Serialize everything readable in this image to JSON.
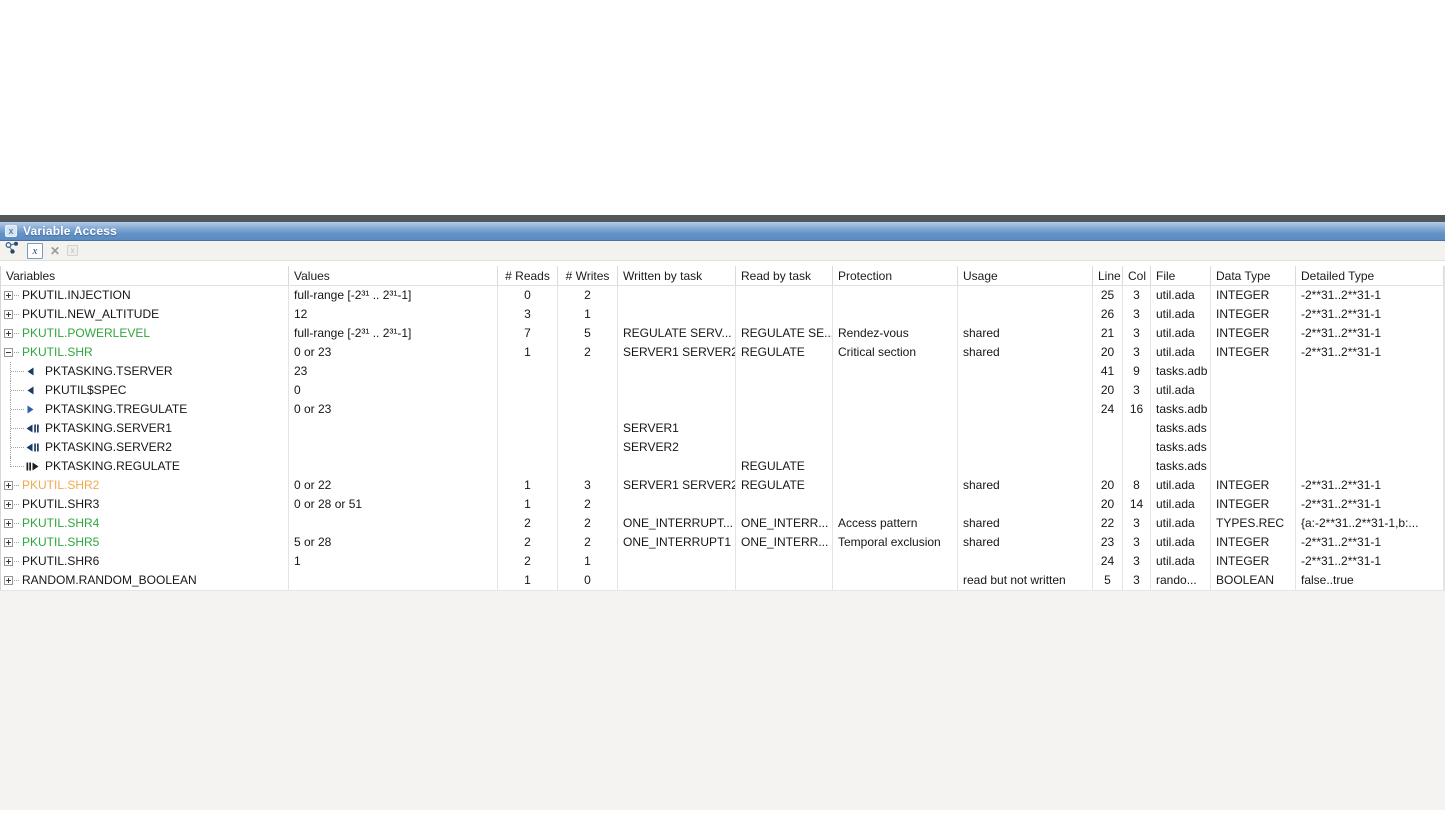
{
  "panel": {
    "title": "Variable Access",
    "toolbar": {
      "buttons": [
        {
          "name": "graph-view-button",
          "icon": "connected-nodes-icon"
        },
        {
          "name": "show-variables-button",
          "icon": "variable-x-icon"
        },
        {
          "name": "delete-button",
          "icon": "delete-x-icon"
        },
        {
          "name": "delete-disabled-button",
          "icon": "small-x-box-icon"
        }
      ]
    }
  },
  "colors": {
    "default": "#161616",
    "green": "#2fa63c",
    "orange": "#f0a94c",
    "titlebar_blue": "#6291c6"
  },
  "table": {
    "columns": [
      {
        "key": "variables",
        "label": "Variables"
      },
      {
        "key": "values",
        "label": "Values"
      },
      {
        "key": "reads",
        "label": "# Reads"
      },
      {
        "key": "writes",
        "label": "# Writes"
      },
      {
        "key": "written_by",
        "label": "Written by task"
      },
      {
        "key": "read_by",
        "label": "Read by task"
      },
      {
        "key": "protection",
        "label": "Protection"
      },
      {
        "key": "usage",
        "label": "Usage"
      },
      {
        "key": "line",
        "label": "Line"
      },
      {
        "key": "col",
        "label": "Col"
      },
      {
        "key": "file",
        "label": "File"
      },
      {
        "key": "data_type",
        "label": "Data Type"
      },
      {
        "key": "detailed_type",
        "label": "Detailed Type"
      }
    ],
    "rows": [
      {
        "variable": "PKUTIL.INJECTION",
        "color": "default",
        "level": 0,
        "expander": "plus",
        "marker": null,
        "last_child": false,
        "values": "full-range [-2³¹ .. 2³¹-1]",
        "reads": "0",
        "writes": "2",
        "written_by": "",
        "read_by": "",
        "protection": "",
        "usage": "",
        "line": "25",
        "col": "3",
        "file": "util.ada",
        "data_type": "INTEGER",
        "detailed_type": "-2**31..2**31-1"
      },
      {
        "variable": "PKUTIL.NEW_ALTITUDE",
        "color": "default",
        "level": 0,
        "expander": "plus",
        "marker": null,
        "last_child": false,
        "values": "12",
        "reads": "3",
        "writes": "1",
        "written_by": "",
        "read_by": "",
        "protection": "",
        "usage": "",
        "line": "26",
        "col": "3",
        "file": "util.ada",
        "data_type": "INTEGER",
        "detailed_type": "-2**31..2**31-1"
      },
      {
        "variable": "PKUTIL.POWERLEVEL",
        "color": "green",
        "level": 0,
        "expander": "plus",
        "marker": null,
        "last_child": false,
        "values": "full-range [-2³¹ .. 2³¹-1]",
        "reads": "7",
        "writes": "5",
        "written_by": "REGULATE SERV...",
        "read_by": "REGULATE SE...",
        "protection": "Rendez-vous",
        "usage": "shared",
        "line": "21",
        "col": "3",
        "file": "util.ada",
        "data_type": "INTEGER",
        "detailed_type": "-2**31..2**31-1"
      },
      {
        "variable": "PKUTIL.SHR",
        "color": "green",
        "level": 0,
        "expander": "minus",
        "marker": null,
        "last_child": false,
        "values": "0 or 23",
        "reads": "1",
        "writes": "2",
        "written_by": "SERVER1 SERVER2",
        "read_by": "REGULATE",
        "protection": "Critical section",
        "usage": "shared",
        "line": "20",
        "col": "3",
        "file": "util.ada",
        "data_type": "INTEGER",
        "detailed_type": "-2**31..2**31-1"
      },
      {
        "variable": "PKTASKING.TSERVER",
        "color": "default",
        "level": 1,
        "expander": null,
        "marker": "left-triangle",
        "last_child": false,
        "values": "23",
        "reads": "",
        "writes": "",
        "written_by": "",
        "read_by": "",
        "protection": "",
        "usage": "",
        "line": "41",
        "col": "9",
        "file": "tasks.adb",
        "data_type": "",
        "detailed_type": ""
      },
      {
        "variable": "PKUTIL$SPEC",
        "color": "default",
        "level": 1,
        "expander": null,
        "marker": "left-triangle",
        "last_child": false,
        "values": "0",
        "reads": "",
        "writes": "",
        "written_by": "",
        "read_by": "",
        "protection": "",
        "usage": "",
        "line": "20",
        "col": "3",
        "file": "util.ada",
        "data_type": "",
        "detailed_type": ""
      },
      {
        "variable": "PKTASKING.TREGULATE",
        "color": "default",
        "level": 1,
        "expander": null,
        "marker": "right-triangle",
        "last_child": false,
        "values": "0 or 23",
        "reads": "",
        "writes": "",
        "written_by": "",
        "read_by": "",
        "protection": "",
        "usage": "",
        "line": "24",
        "col": "16",
        "file": "tasks.adb",
        "data_type": "",
        "detailed_type": ""
      },
      {
        "variable": "PKTASKING.SERVER1",
        "color": "default",
        "level": 1,
        "expander": null,
        "marker": "left-triangle-bars",
        "last_child": false,
        "values": "",
        "reads": "",
        "writes": "",
        "written_by": "SERVER1",
        "read_by": "",
        "protection": "",
        "usage": "",
        "line": "",
        "col": "",
        "file": "tasks.ads",
        "data_type": "",
        "detailed_type": ""
      },
      {
        "variable": "PKTASKING.SERVER2",
        "color": "default",
        "level": 1,
        "expander": null,
        "marker": "left-triangle-bars",
        "last_child": false,
        "values": "",
        "reads": "",
        "writes": "",
        "written_by": "SERVER2",
        "read_by": "",
        "protection": "",
        "usage": "",
        "line": "",
        "col": "",
        "file": "tasks.ads",
        "data_type": "",
        "detailed_type": ""
      },
      {
        "variable": "PKTASKING.REGULATE",
        "color": "default",
        "level": 1,
        "expander": null,
        "marker": "bars-right-triangle",
        "last_child": true,
        "values": "",
        "reads": "",
        "writes": "",
        "written_by": "",
        "read_by": "REGULATE",
        "protection": "",
        "usage": "",
        "line": "",
        "col": "",
        "file": "tasks.ads",
        "data_type": "",
        "detailed_type": ""
      },
      {
        "variable": "PKUTIL.SHR2",
        "color": "orange",
        "level": 0,
        "expander": "plus",
        "marker": null,
        "last_child": false,
        "values": "0 or 22",
        "reads": "1",
        "writes": "3",
        "written_by": "SERVER1 SERVER2",
        "read_by": "REGULATE",
        "protection": "",
        "usage": "shared",
        "line": "20",
        "col": "8",
        "file": "util.ada",
        "data_type": "INTEGER",
        "detailed_type": "-2**31..2**31-1"
      },
      {
        "variable": "PKUTIL.SHR3",
        "color": "default",
        "level": 0,
        "expander": "plus",
        "marker": null,
        "last_child": false,
        "values": "0 or 28 or 51",
        "reads": "1",
        "writes": "2",
        "written_by": "",
        "read_by": "",
        "protection": "",
        "usage": "",
        "line": "20",
        "col": "14",
        "file": "util.ada",
        "data_type": "INTEGER",
        "detailed_type": "-2**31..2**31-1"
      },
      {
        "variable": "PKUTIL.SHR4",
        "color": "green",
        "level": 0,
        "expander": "plus",
        "marker": null,
        "last_child": false,
        "values": "",
        "reads": "2",
        "writes": "2",
        "written_by": "ONE_INTERRUPT...",
        "read_by": "ONE_INTERR...",
        "protection": "Access pattern",
        "usage": "shared",
        "line": "22",
        "col": "3",
        "file": "util.ada",
        "data_type": "TYPES.REC",
        "detailed_type": "{a:-2**31..2**31-1,b:..."
      },
      {
        "variable": "PKUTIL.SHR5",
        "color": "green",
        "level": 0,
        "expander": "plus",
        "marker": null,
        "last_child": false,
        "values": "5 or 28",
        "reads": "2",
        "writes": "2",
        "written_by": "ONE_INTERRUPT1",
        "read_by": "ONE_INTERR...",
        "protection": "Temporal exclusion",
        "usage": "shared",
        "line": "23",
        "col": "3",
        "file": "util.ada",
        "data_type": "INTEGER",
        "detailed_type": "-2**31..2**31-1"
      },
      {
        "variable": "PKUTIL.SHR6",
        "color": "default",
        "level": 0,
        "expander": "plus",
        "marker": null,
        "last_child": false,
        "values": "1",
        "reads": "2",
        "writes": "1",
        "written_by": "",
        "read_by": "",
        "protection": "",
        "usage": "",
        "line": "24",
        "col": "3",
        "file": "util.ada",
        "data_type": "INTEGER",
        "detailed_type": "-2**31..2**31-1"
      },
      {
        "variable": "RANDOM.RANDOM_BOOLEAN",
        "color": "default",
        "level": 0,
        "expander": "plus",
        "marker": null,
        "last_child": false,
        "values": "",
        "reads": "1",
        "writes": "0",
        "written_by": "",
        "read_by": "",
        "protection": "",
        "usage": "read but not written",
        "line": "5",
        "col": "3",
        "file": "rando...",
        "data_type": "BOOLEAN",
        "detailed_type": "false..true"
      }
    ]
  }
}
